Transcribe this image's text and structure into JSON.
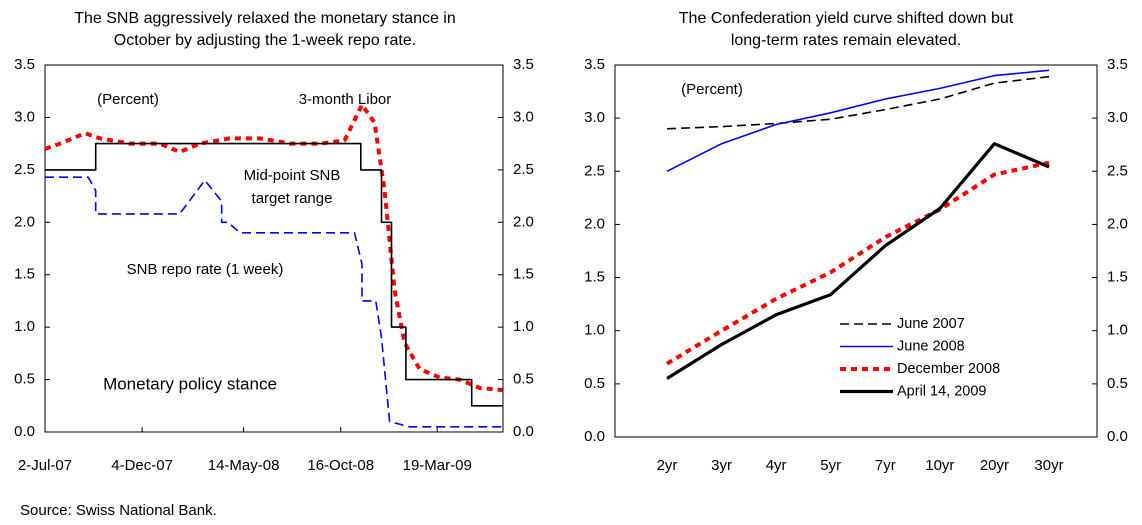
{
  "chart_data": [
    {
      "type": "line",
      "title": "The SNB aggressively relaxed the monetary stance in October by adjusting the 1-week repo rate.",
      "annotations": [
        "(Percent)",
        "Monetary policy stance"
      ],
      "series": [
        {
          "name": "3-month Libor",
          "color": "#ff0000",
          "style": "dotted",
          "x": [
            "2007-07-02",
            "2007-07-26",
            "2007-09-04",
            "2007-09-28",
            "2007-11-15",
            "2008-01-01",
            "2008-02-02",
            "2008-03-05",
            "2008-04-22",
            "2008-06-09",
            "2008-07-27",
            "2008-09-13",
            "2008-10-22",
            "2008-11-19",
            "2008-12-09",
            "2008-12-25",
            "2009-01-10",
            "2009-01-26",
            "2009-02-19",
            "2009-03-23",
            "2009-04-24",
            "2009-05-26",
            "2009-07-01"
          ],
          "values": [
            2.7,
            2.75,
            2.85,
            2.8,
            2.75,
            2.75,
            2.67,
            2.75,
            2.8,
            2.8,
            2.75,
            2.75,
            2.78,
            3.12,
            2.95,
            2.3,
            1.35,
            0.85,
            0.6,
            0.52,
            0.5,
            0.42,
            0.4
          ]
        },
        {
          "name": "Mid-point SNB target range",
          "color": "#000000",
          "style": "solid",
          "x": [
            "2007-07-02",
            "2007-09-21",
            "2007-09-21",
            "2008-11-17",
            "2008-11-17",
            "2008-12-20",
            "2008-12-20",
            "2009-01-05",
            "2009-01-05",
            "2009-01-28",
            "2009-01-28",
            "2009-05-13",
            "2009-05-13",
            "2009-07-01"
          ],
          "values": [
            2.5,
            2.5,
            2.75,
            2.75,
            2.5,
            2.5,
            2.0,
            2.0,
            1.0,
            1.0,
            0.5,
            0.5,
            0.25,
            0.25
          ]
        },
        {
          "name": "SNB repo rate (1 week)",
          "color": "#0000ff",
          "style": "dashed",
          "x": [
            "2007-07-02",
            "2007-09-09",
            "2007-09-21",
            "2007-09-21",
            "2008-02-02",
            "2008-03-13",
            "2008-04-09",
            "2008-04-09",
            "2008-04-19",
            "2008-05-08",
            "2008-11-07",
            "2008-11-19",
            "2008-11-19",
            "2008-12-11",
            "2008-12-20",
            "2009-01-02",
            "2009-02-03",
            "2009-07-01"
          ],
          "values": [
            2.43,
            2.43,
            2.3,
            2.08,
            2.08,
            2.4,
            2.2,
            2.0,
            2.0,
            1.9,
            1.9,
            1.6,
            1.25,
            1.25,
            0.9,
            0.1,
            0.05,
            0.05
          ]
        }
      ],
      "xlim": [
        "2007-07-02",
        "2009-07-02"
      ],
      "xticks": [
        {
          "value": "2007-07-02",
          "label": "2-Jul-07"
        },
        {
          "value": "2007-12-04",
          "label": "4-Dec-07"
        },
        {
          "value": "2008-05-14",
          "label": "14-May-08"
        },
        {
          "value": "2008-10-16",
          "label": "16-Oct-08"
        },
        {
          "value": "2009-03-19",
          "label": "19-Mar-09"
        }
      ],
      "ylim": [
        0,
        3.5
      ],
      "yticks": [
        {
          "value": 0,
          "label": "0.0"
        },
        0.5,
        {
          "value": 1,
          "label": "1.0"
        },
        1.5,
        {
          "value": 2,
          "label": "2.0"
        },
        2.5,
        {
          "value": 3,
          "label": "3.0"
        },
        3.5
      ],
      "y2lim": [
        0,
        3.5
      ],
      "y2ticks": [
        {
          "value": 0,
          "label": "0.0"
        },
        0.5,
        {
          "value": 1,
          "label": "1.0"
        },
        1.5,
        {
          "value": 2,
          "label": "2.0"
        },
        2.5,
        {
          "value": 3,
          "label": "3.0"
        },
        3.5
      ]
    },
    {
      "type": "line",
      "title": "The Confederation yield curve shifted down but long-term rates remain elevated.",
      "annotations": [
        "(Percent)"
      ],
      "categories": [
        "2yr",
        "3yr",
        "4yr",
        "5yr",
        "7yr",
        "10yr",
        "20yr",
        "30yr"
      ],
      "series": [
        {
          "name": "June 2007",
          "color": "#000000",
          "style": "dashed",
          "values": [
            2.9,
            2.92,
            2.95,
            2.99,
            3.08,
            3.18,
            3.33,
            3.39
          ]
        },
        {
          "name": "June 2008",
          "color": "#0000ff",
          "style": "solid",
          "values": [
            2.5,
            2.76,
            2.94,
            3.05,
            3.18,
            3.28,
            3.4,
            3.45
          ]
        },
        {
          "name": "December 2008",
          "color": "#ff0000",
          "style": "dotted",
          "values": [
            0.69,
            1.0,
            1.3,
            1.55,
            1.88,
            2.14,
            2.47,
            2.58
          ]
        },
        {
          "name": "April 14, 2009",
          "color": "#000000",
          "style": "thick",
          "values": [
            0.55,
            0.87,
            1.15,
            1.34,
            1.8,
            2.15,
            2.76,
            2.54
          ]
        }
      ],
      "legend": "lower right",
      "ylim": [
        0,
        3.5
      ],
      "yticks": [
        {
          "value": 0,
          "label": "0.0"
        },
        0.5,
        {
          "value": 1,
          "label": "1.0"
        },
        1.5,
        {
          "value": 2,
          "label": "2.0"
        },
        2.5,
        {
          "value": 3,
          "label": "3.0"
        },
        3.5
      ],
      "y2lim": [
        0,
        3.5
      ],
      "y2ticks": [
        {
          "value": 0,
          "label": "0.0"
        },
        0.5,
        {
          "value": 1,
          "label": "1.0"
        },
        1.5,
        {
          "value": 2,
          "label": "2.0"
        },
        2.5,
        {
          "value": 3,
          "label": "3.0"
        },
        3.5
      ]
    }
  ],
  "source": "Source: Swiss National Bank."
}
